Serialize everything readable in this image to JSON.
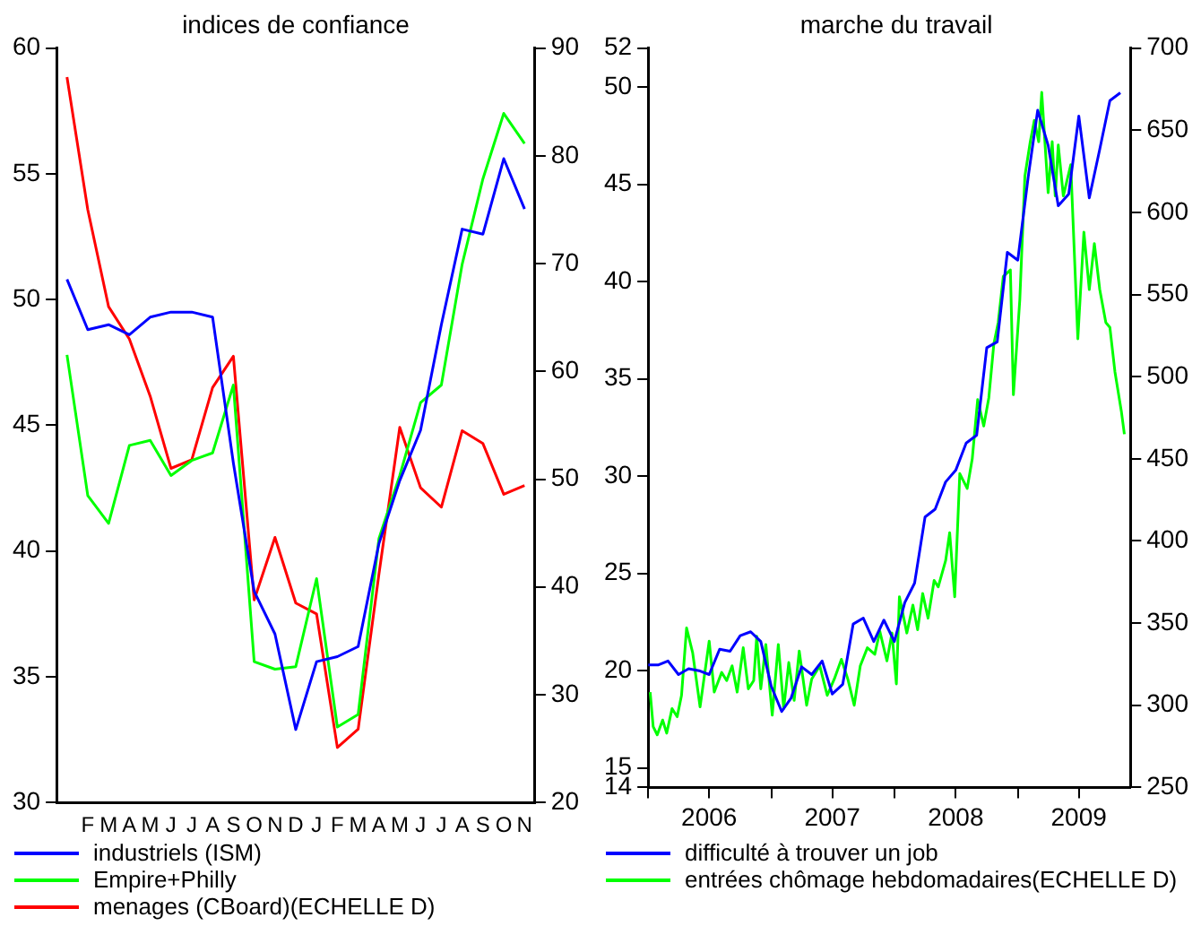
{
  "chart_data": [
    {
      "type": "line",
      "title": "indices de confiance",
      "categories": [
        null,
        "F",
        "M",
        "A",
        "M",
        "J",
        "J",
        "A",
        "S",
        "O",
        "N",
        "D",
        "J",
        "F",
        "M",
        "A",
        "M",
        "J",
        "J",
        "A",
        "S",
        "O",
        "N"
      ],
      "series": [
        {
          "name": "industriels (ISM)",
          "color": "#0000ff",
          "values": [
            50.8,
            48.8,
            49.0,
            48.6,
            49.3,
            49.5,
            49.5,
            49.3,
            43.5,
            38.4,
            36.7,
            32.9,
            35.6,
            35.8,
            36.2,
            40.3,
            42.8,
            44.8,
            49.0,
            52.8,
            52.6,
            55.6,
            53.6
          ]
        },
        {
          "name": "Empire+Philly",
          "color": "#00ff00",
          "values": [
            47.8,
            42.2,
            41.1,
            44.2,
            44.4,
            43.0,
            43.6,
            43.9,
            46.6,
            35.6,
            35.3,
            35.4,
            38.9,
            33.0,
            33.5,
            40.5,
            43.0,
            45.9,
            46.6,
            51.4,
            54.8,
            57.4,
            56.2
          ]
        },
        {
          "name": "menages (CBoard)(ECHELLE D)",
          "color": "#ff0000",
          "axis": "y2",
          "values": [
            87.3,
            75,
            66,
            63.0,
            57.7,
            51.0,
            51.8,
            58.5,
            61.4,
            38.8,
            44.6,
            38.5,
            37.5,
            25.1,
            26.8,
            41.2,
            54.8,
            49.2,
            47.4,
            54.5,
            53.3,
            48.6,
            49.4
          ]
        }
      ],
      "ylim": [
        30,
        60
      ],
      "yticks": [
        30,
        35,
        40,
        45,
        50,
        55,
        60
      ],
      "y2lim": [
        20,
        90
      ],
      "y2ticks": [
        20,
        30,
        40,
        50,
        60,
        70,
        80,
        90
      ],
      "legend": "bottom left",
      "marker": "none",
      "grid": false
    },
    {
      "type": "line",
      "title": "marche du travail",
      "xlim": [
        "2006-01",
        "2009-12"
      ],
      "xticks": [
        {
          "value": "2006-01",
          "label": null
        },
        {
          "value": "2006-07",
          "label": "2006"
        },
        {
          "value": "2007-01",
          "label": null
        },
        {
          "value": "2007-07",
          "label": "2007"
        },
        {
          "value": "2008-01",
          "label": null
        },
        {
          "value": "2008-07",
          "label": "2008"
        },
        {
          "value": "2009-01",
          "label": null
        },
        {
          "value": "2009-07",
          "label": "2009"
        }
      ],
      "series": [
        {
          "name": "difficulté à trouver un job",
          "color": "#0000ff",
          "x": [
            "2006-01",
            "2006-02",
            "2006-03",
            "2006-04",
            "2006-05",
            "2006-06",
            "2006-07",
            "2006-08",
            "2006-09",
            "2006-10",
            "2006-11",
            "2006-12",
            "2007-01",
            "2007-02",
            "2007-03",
            "2007-04",
            "2007-05",
            "2007-06",
            "2007-07",
            "2007-08",
            "2007-09",
            "2007-10",
            "2007-11",
            "2007-12",
            "2008-01",
            "2008-02",
            "2008-03",
            "2008-04",
            "2008-05",
            "2008-06",
            "2008-07",
            "2008-08",
            "2008-09",
            "2008-10",
            "2008-11",
            "2008-12",
            "2009-01",
            "2009-02",
            "2009-03",
            "2009-04",
            "2009-05",
            "2009-06",
            "2009-07",
            "2009-08",
            "2009-09",
            "2009-10",
            "2009-11"
          ],
          "values": [
            20.3,
            20.3,
            20.5,
            19.8,
            20.1,
            20.0,
            19.8,
            21.1,
            21.0,
            21.8,
            22.0,
            21.5,
            19.2,
            17.9,
            18.6,
            20.2,
            19.8,
            20.5,
            18.8,
            19.3,
            22.4,
            22.7,
            21.5,
            22.6,
            21.5,
            23.5,
            24.5,
            27.9,
            28.3,
            29.7,
            30.3,
            31.7,
            32.1,
            36.6,
            36.9,
            41.5,
            41.1,
            45.4,
            48.8,
            47.0,
            43.9,
            44.5,
            48.5,
            44.3,
            46.8,
            49.3,
            49.7
          ]
        },
        {
          "name": "entrées chômage hebdomadaires(ECHELLE D)",
          "color": "#00ff00",
          "axis": "y2",
          "x": [
            "2006-01-07",
            "2006-01-16",
            "2006-01-28",
            "2006-02-13",
            "2006-02-25",
            "2006-03-13",
            "2006-03-28",
            "2006-04-10",
            "2006-04-25",
            "2006-05-13",
            "2006-06-04",
            "2006-07-01",
            "2006-07-16",
            "2006-08-07",
            "2006-08-22",
            "2006-09-07",
            "2006-09-22",
            "2006-10-10",
            "2006-10-25",
            "2006-11-10",
            "2006-11-19",
            "2006-12-01",
            "2006-12-16",
            "2007-01-04",
            "2007-01-22",
            "2007-02-07",
            "2007-02-22",
            "2007-03-10",
            "2007-03-25",
            "2007-04-16",
            "2007-05-01",
            "2007-05-25",
            "2007-06-16",
            "2007-07-07",
            "2007-07-28",
            "2007-08-16",
            "2007-09-04",
            "2007-09-22",
            "2007-10-13",
            "2007-11-04",
            "2007-11-19",
            "2007-12-10",
            "2007-12-25",
            "2008-01-07",
            "2008-01-16",
            "2008-02-07",
            "2008-02-25",
            "2008-03-10",
            "2008-03-25",
            "2008-04-10",
            "2008-04-28",
            "2008-05-10",
            "2008-06-01",
            "2008-06-13",
            "2008-06-28",
            "2008-07-13",
            "2008-08-04",
            "2008-08-19",
            "2008-09-04",
            "2008-09-22",
            "2008-10-07",
            "2008-10-22",
            "2008-11-04",
            "2008-11-19",
            "2008-12-10",
            "2008-12-19",
            "2009-01-07",
            "2009-01-22",
            "2009-02-07",
            "2009-02-19",
            "2009-03-04",
            "2009-03-13",
            "2009-04-01",
            "2009-04-13",
            "2009-04-22",
            "2009-05-01",
            "2009-05-16",
            "2009-06-07",
            "2009-06-28",
            "2009-07-16",
            "2009-08-01",
            "2009-08-16",
            "2009-09-01",
            "2009-09-19",
            "2009-10-01",
            "2009-10-16",
            "2009-11-04",
            "2009-11-13"
          ],
          "values": [
            308,
            287,
            282,
            291,
            283,
            298,
            293,
            306,
            347,
            332,
            299,
            339,
            308,
            320,
            315,
            324,
            308,
            335,
            310,
            315,
            342,
            310,
            337,
            294,
            337,
            298,
            326,
            303,
            333,
            300,
            316,
            324,
            306,
            316,
            328,
            316,
            300,
            324,
            335,
            331,
            345,
            327,
            344,
            313,
            366,
            344,
            361,
            346,
            368,
            353,
            376,
            372,
            388,
            405,
            366,
            441,
            432,
            450,
            486,
            470,
            487,
            520,
            533,
            561,
            565,
            489,
            547,
            622,
            643,
            656,
            643,
            673,
            612,
            643,
            610,
            641,
            610,
            629,
            523,
            588,
            553,
            581,
            553,
            533,
            530,
            503,
            479,
            465
          ]
        }
      ],
      "ylim": [
        14,
        52
      ],
      "yticks": [
        14,
        15,
        20,
        25,
        30,
        35,
        40,
        45,
        50,
        52
      ],
      "y2lim": [
        250,
        700
      ],
      "y2ticks": [
        250,
        300,
        350,
        400,
        450,
        500,
        550,
        600,
        650,
        700
      ],
      "legend": "bottom left",
      "marker": "none",
      "grid": false
    }
  ]
}
